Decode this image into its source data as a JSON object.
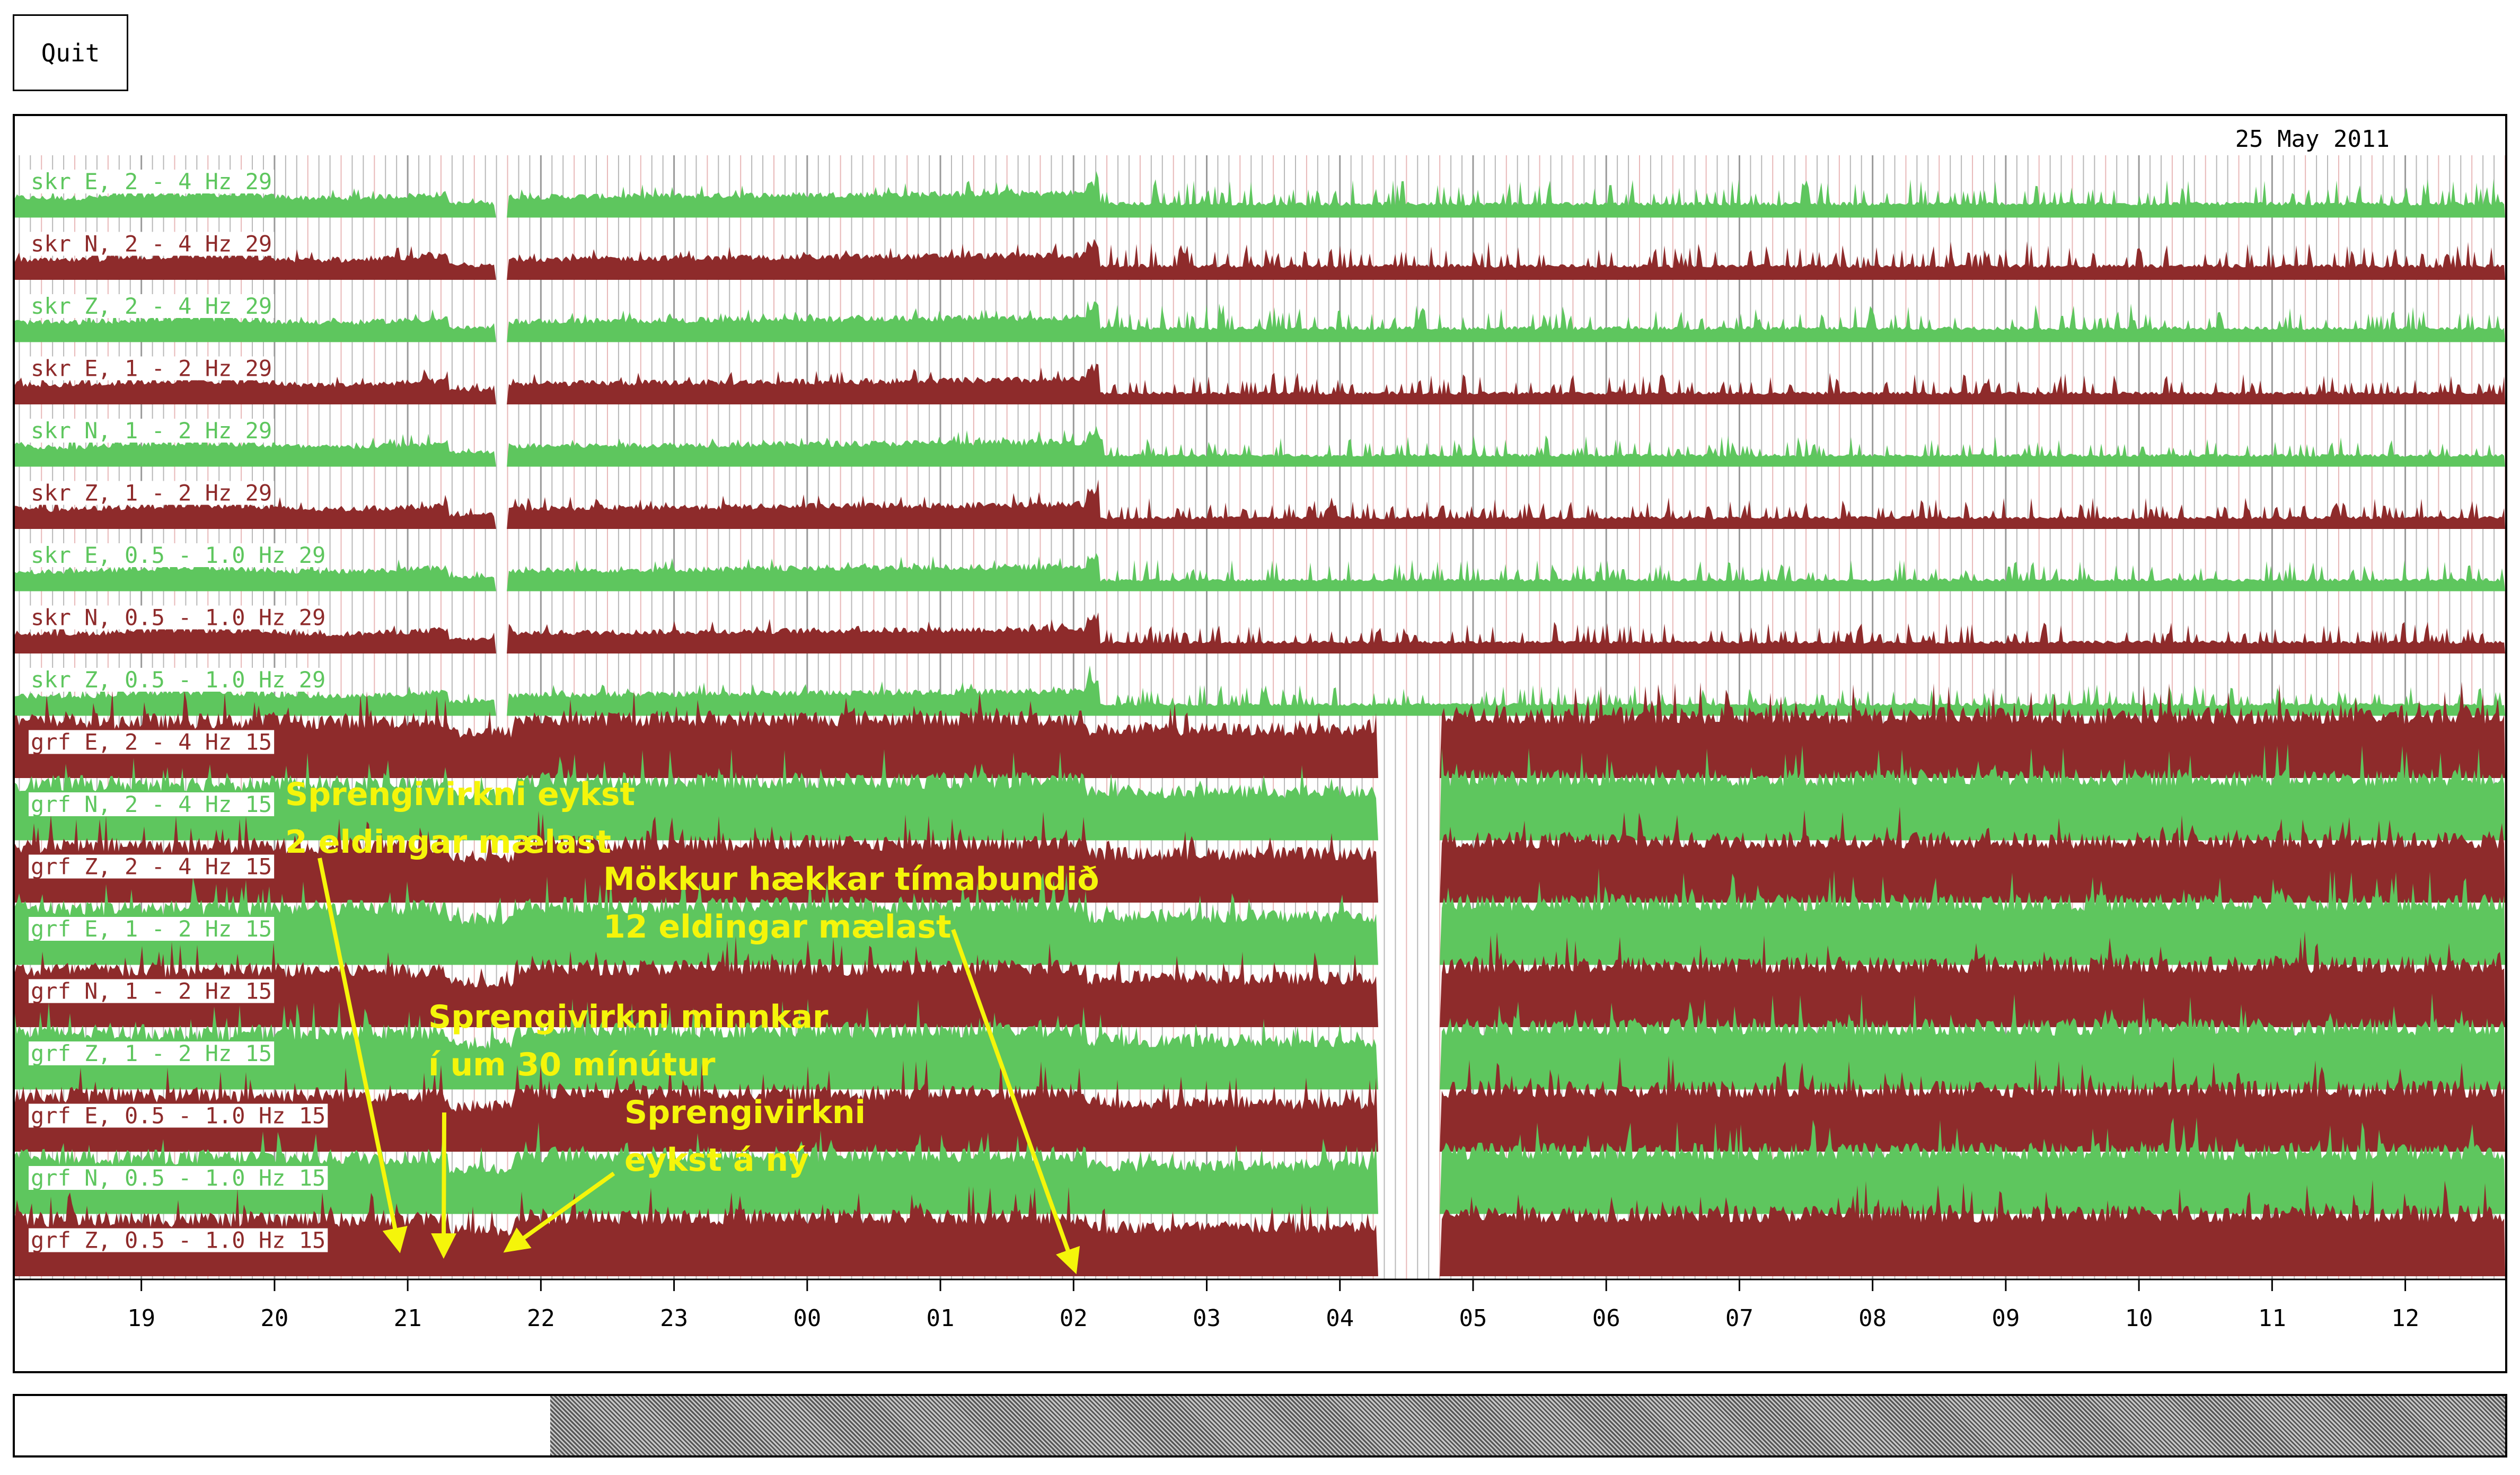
{
  "window": {
    "quit_label": "Quit",
    "scroll_position": 0.215
  },
  "chart_data": {
    "type": "area",
    "title": "25 May 2011",
    "colors": {
      "green": "#5ec65e",
      "red": "#8e2b2b",
      "grid_gray": "#b8b8b8",
      "grid_pink": "#e8b8b8",
      "annotation": "#f5f50a"
    },
    "x_axis": {
      "unit": "hour",
      "tick_labels": [
        "19",
        "20",
        "21",
        "22",
        "23",
        "00",
        "01",
        "02",
        "03",
        "04",
        "05",
        "06",
        "07",
        "08",
        "09",
        "10",
        "11",
        "12"
      ],
      "range_hours": [
        18.05,
        36.75
      ]
    },
    "traces": [
      {
        "label": "skr E, 2 - 4 Hz 29",
        "color": "green"
      },
      {
        "label": "skr N, 2 - 4 Hz 29",
        "color": "red"
      },
      {
        "label": "skr Z, 2 - 4 Hz 29",
        "color": "green"
      },
      {
        "label": "skr E, 1 - 2 Hz 29",
        "color": "red"
      },
      {
        "label": "skr N, 1 - 2 Hz 29",
        "color": "green"
      },
      {
        "label": "skr Z, 1 - 2 Hz 29",
        "color": "red"
      },
      {
        "label": "skr E, 0.5 - 1.0 Hz 29",
        "color": "green"
      },
      {
        "label": "skr N, 0.5 - 1.0 Hz 29",
        "color": "red"
      },
      {
        "label": "skr Z, 0.5 - 1.0 Hz 29",
        "color": "green"
      },
      {
        "label": "grf E, 2 - 4 Hz 15",
        "color": "red"
      },
      {
        "label": "grf N, 2 - 4 Hz 15",
        "color": "green"
      },
      {
        "label": "grf Z, 2 - 4 Hz 15",
        "color": "red"
      },
      {
        "label": "grf E, 1 - 2 Hz 15",
        "color": "green"
      },
      {
        "label": "grf N, 1 - 2 Hz 15",
        "color": "red"
      },
      {
        "label": "grf Z, 1 - 2 Hz 15",
        "color": "green"
      },
      {
        "label": "grf E, 0.5 - 1.0 Hz 15",
        "color": "red"
      },
      {
        "label": "grf N, 0.5 - 1.0 Hz 15",
        "color": "green"
      },
      {
        "label": "grf Z, 0.5 - 1.0 Hz 15",
        "color": "red"
      }
    ],
    "data_gaps_hours": [
      {
        "stations": "skr",
        "from": 21.65,
        "to": 21.75
      },
      {
        "stations": "grf",
        "from": 28.28,
        "to": 28.75
      }
    ],
    "annotations": [
      {
        "lines": [
          "Sprengivirkni eykst",
          "2 eldingar mælast"
        ],
        "arrow_to_hour": 20.93
      },
      {
        "lines": [
          "Sprengivirkni minnkar",
          "í um 30 mínútur"
        ],
        "arrow_to_hour": 21.27
      },
      {
        "lines": [
          "Sprengivirkni",
          "eykst á ný"
        ],
        "arrow_to_hour": 21.77
      },
      {
        "lines": [
          "Mökkur hækkar tímabundið",
          "12 eldingar mælast"
        ],
        "arrow_to_hour": 26.0
      }
    ]
  }
}
